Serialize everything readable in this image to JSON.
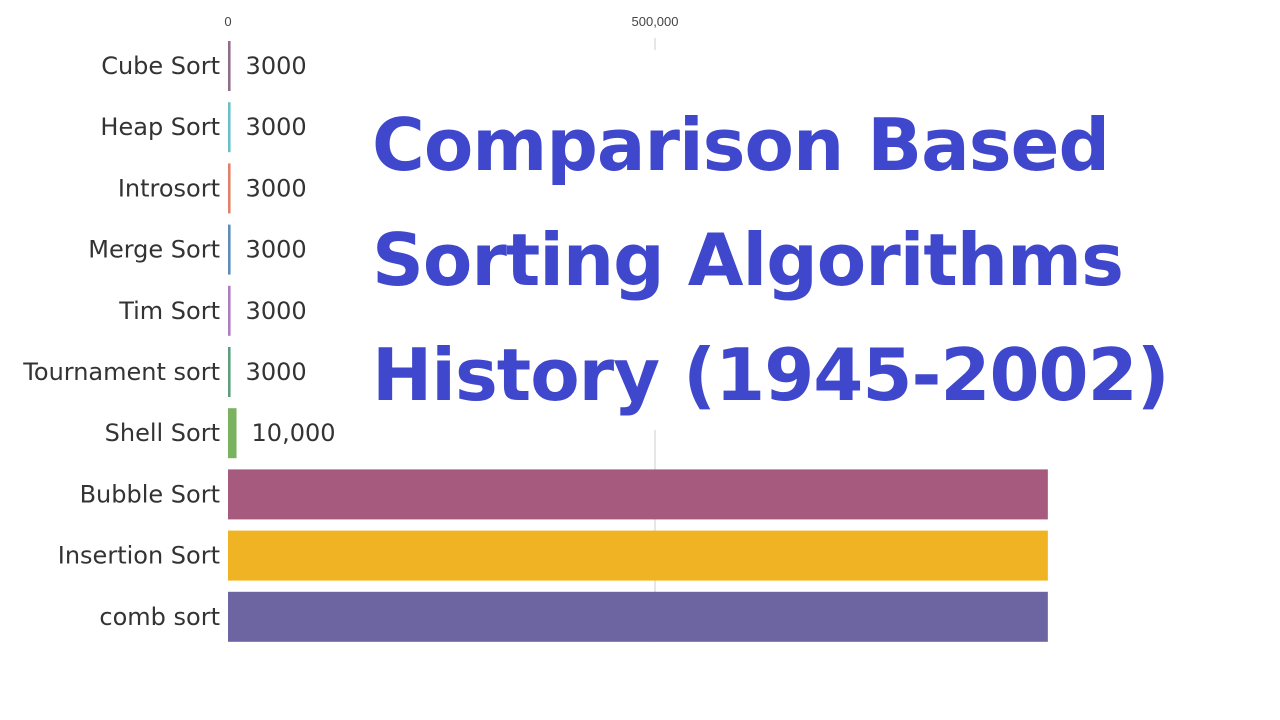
{
  "chart_data": {
    "type": "bar",
    "orientation": "horizontal",
    "title": "Comparison Based Sorting Algorithms History (1945-2002)",
    "title_lines": [
      "Comparison Based",
      "Sorting Algorithms",
      "History (1945-2002)"
    ],
    "title_color": "#3f48cc",
    "x_ticks": [
      {
        "value": 0,
        "label": "0"
      },
      {
        "value": 500000,
        "label": "500,000"
      }
    ],
    "xlim": [
      0,
      960000
    ],
    "categories": [
      "Cube Sort",
      "Heap Sort",
      "Introsort",
      "Merge Sort",
      "Tim Sort",
      "Tournament sort",
      "Shell Sort",
      "Bubble Sort",
      "Insertion Sort",
      "comb sort"
    ],
    "values": [
      3000,
      3000,
      3000,
      3000,
      3000,
      3000,
      10000,
      960000,
      960000,
      960000
    ],
    "value_labels": [
      "3000",
      "3000",
      "3000",
      "3000",
      "3000",
      "3000",
      "10,000",
      "",
      "",
      ""
    ],
    "colors": [
      "#8e6c8a",
      "#6cbfc9",
      "#e0826a",
      "#5b8db8",
      "#b07cc0",
      "#5a9e7e",
      "#7ab35f",
      "#a55a7e",
      "#f0b323",
      "#6d64a2"
    ],
    "grid": true
  }
}
